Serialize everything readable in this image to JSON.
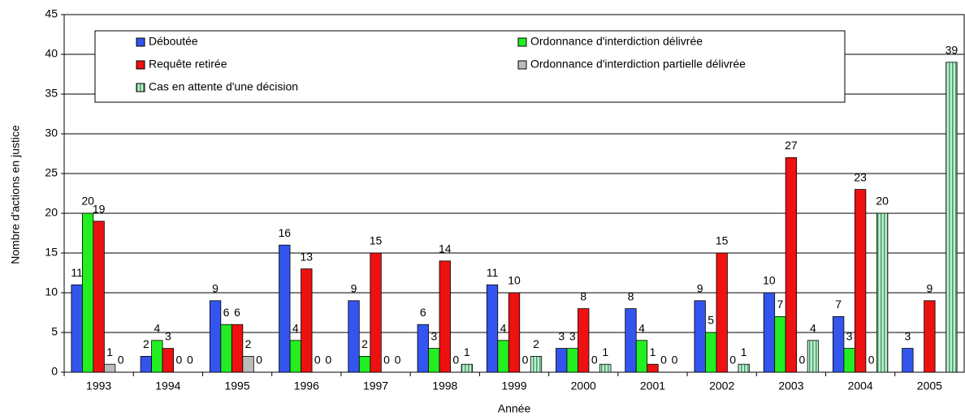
{
  "chart_data": {
    "type": "bar",
    "y_label": "Nombre d'actions en justice",
    "x_label": "Année",
    "categories": [
      "1993",
      "1994",
      "1995",
      "1996",
      "1997",
      "1998",
      "1999",
      "2000",
      "2001",
      "2002",
      "2003",
      "2004",
      "2005"
    ],
    "series": [
      {
        "name": "Déboutée",
        "color": "#3355ee",
        "values": [
          11,
          2,
          9,
          16,
          9,
          6,
          11,
          3,
          8,
          9,
          10,
          7,
          3
        ]
      },
      {
        "name": "Ordonnance d'interdiction délivrée",
        "color": "#22ee22",
        "values": [
          20,
          4,
          6,
          4,
          2,
          3,
          4,
          3,
          4,
          5,
          7,
          3,
          null
        ]
      },
      {
        "name": "Requête retirée",
        "color": "#ee1111",
        "values": [
          19,
          3,
          6,
          13,
          15,
          14,
          10,
          8,
          1,
          15,
          27,
          23,
          9
        ]
      },
      {
        "name": "Ordonnance d'interdiction partielle délivrée",
        "color": "#bbbbbb",
        "values": [
          1,
          0,
          2,
          0,
          0,
          0,
          0,
          0,
          0,
          0,
          0,
          0,
          null
        ]
      },
      {
        "name": "Cas en attente d'une décision",
        "color": "#bfeed0",
        "pattern": "vertical-stripes",
        "values": [
          0,
          0,
          0,
          0,
          0,
          1,
          2,
          1,
          0,
          1,
          4,
          20,
          39
        ]
      }
    ],
    "ylim": [
      0,
      45
    ],
    "yticks": [
      0,
      5,
      10,
      15,
      20,
      25,
      30,
      35,
      40,
      45
    ],
    "grid": true
  }
}
